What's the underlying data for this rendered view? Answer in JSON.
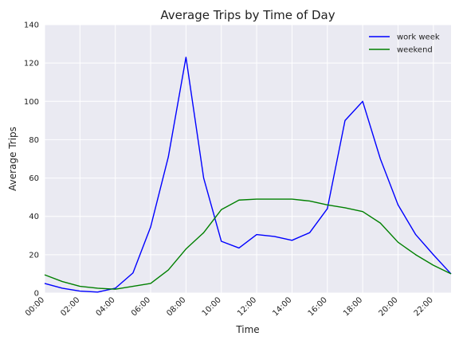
{
  "chart_data": {
    "type": "line",
    "title": "Average Trips by Time of Day",
    "xlabel": "Time",
    "ylabel": "Average Trips",
    "x": [
      "00:00",
      "01:00",
      "02:00",
      "03:00",
      "04:00",
      "05:00",
      "06:00",
      "07:00",
      "08:00",
      "09:00",
      "10:00",
      "11:00",
      "12:00",
      "13:00",
      "14:00",
      "15:00",
      "16:00",
      "17:00",
      "18:00",
      "19:00",
      "20:00",
      "21:00",
      "22:00",
      "23:00"
    ],
    "x_tick_labels": [
      "00:00",
      "02:00",
      "04:00",
      "06:00",
      "08:00",
      "10:00",
      "12:00",
      "14:00",
      "16:00",
      "18:00",
      "20:00",
      "22:00"
    ],
    "ylim": [
      0,
      140
    ],
    "y_ticks": [
      0,
      20,
      40,
      60,
      80,
      100,
      120,
      140
    ],
    "grid": true,
    "legend_position": "top-right",
    "series": [
      {
        "name": "work week",
        "color": "#0000ff",
        "values": [
          5,
          2.5,
          1,
          0.5,
          2.5,
          10.5,
          34.5,
          71,
          123,
          60,
          27,
          23.5,
          30.5,
          29.5,
          27.5,
          31.5,
          44,
          90,
          100,
          70,
          46,
          30.5,
          20,
          10
        ]
      },
      {
        "name": "weekend",
        "color": "#008000",
        "values": [
          9.5,
          6,
          3.5,
          2.5,
          2,
          3.5,
          5,
          12,
          23,
          31.5,
          43.5,
          48.5,
          49,
          49,
          49,
          48,
          46,
          44.5,
          42.5,
          36.5,
          26.5,
          20,
          14.5,
          10
        ]
      }
    ]
  },
  "colors": {
    "plot_background": "#eaeaf2",
    "grid": "#ffffff",
    "text": "#222222"
  }
}
